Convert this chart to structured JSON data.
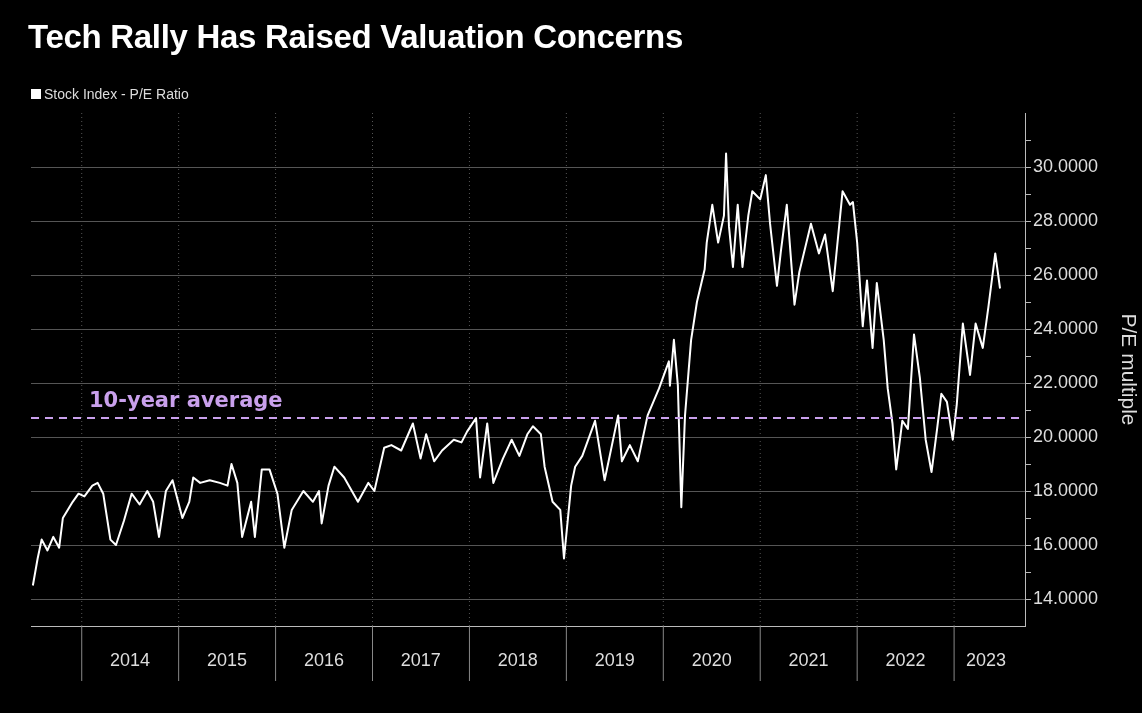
{
  "chart_data": {
    "type": "line",
    "title": "Tech Rally Has Raised Valuation Concerns",
    "ylabel": "P/E multiple",
    "legend": "top left",
    "grid": true,
    "xlim": [
      "2013-06-24",
      "2023-09-25"
    ],
    "xticks": [
      {
        "value": "2014-01-01",
        "label": null
      },
      {
        "value": "2014-07-02",
        "label": "2014"
      },
      {
        "value": "2015-01-01",
        "label": null
      },
      {
        "value": "2015-07-02",
        "label": "2015"
      },
      {
        "value": "2016-01-01",
        "label": null
      },
      {
        "value": "2016-07-02",
        "label": "2016"
      },
      {
        "value": "2017-01-01",
        "label": null
      },
      {
        "value": "2017-07-02",
        "label": "2017"
      },
      {
        "value": "2018-01-01",
        "label": null
      },
      {
        "value": "2018-07-02",
        "label": "2018"
      },
      {
        "value": "2019-01-01",
        "label": null
      },
      {
        "value": "2019-07-02",
        "label": "2019"
      },
      {
        "value": "2020-01-01",
        "label": null
      },
      {
        "value": "2020-07-02",
        "label": "2020"
      },
      {
        "value": "2021-01-01",
        "label": null
      },
      {
        "value": "2021-07-02",
        "label": "2021"
      },
      {
        "value": "2022-01-01",
        "label": null
      },
      {
        "value": "2022-07-02",
        "label": "2022"
      },
      {
        "value": "2023-01-01",
        "label": null
      },
      {
        "value": "2023-05-01",
        "label": "2023"
      }
    ],
    "ylim": [
      13,
      32
    ],
    "yticks": [
      {
        "value": 14,
        "label": "14.0000"
      },
      {
        "value": 15,
        "label": null
      },
      {
        "value": 16,
        "label": "16.0000"
      },
      {
        "value": 17,
        "label": null
      },
      {
        "value": 18,
        "label": "18.0000"
      },
      {
        "value": 19,
        "label": null
      },
      {
        "value": 20,
        "label": "20.0000"
      },
      {
        "value": 21,
        "label": null
      },
      {
        "value": 22,
        "label": "22.0000"
      },
      {
        "value": 23,
        "label": null
      },
      {
        "value": 24,
        "label": "24.0000"
      },
      {
        "value": 25,
        "label": null
      },
      {
        "value": 26,
        "label": "26.0000"
      },
      {
        "value": 27,
        "label": null
      },
      {
        "value": 28,
        "label": "28.0000"
      },
      {
        "value": 29,
        "label": null
      },
      {
        "value": 30,
        "label": "30.0000"
      },
      {
        "value": 31,
        "label": null
      }
    ],
    "ref_lines": [
      {
        "axis": "y",
        "value": 20.7,
        "label": "10-year average",
        "color": "#c9a0ec",
        "line_style": "dashed"
      }
    ],
    "series": [
      {
        "name": "Stock Index - P/E Ratio",
        "color": "#ffffff",
        "x": [
          "2013-07-01",
          "2013-07-19",
          "2013-08-03",
          "2013-08-25",
          "2013-09-16",
          "2013-10-08",
          "2013-10-22",
          "2013-11-28",
          "2013-12-20",
          "2014-01-11",
          "2014-02-10",
          "2014-03-02",
          "2014-03-23",
          "2014-04-19",
          "2014-05-10",
          "2014-06-09",
          "2014-07-08",
          "2014-08-07",
          "2014-09-05",
          "2014-09-27",
          "2014-10-19",
          "2014-11-14",
          "2014-12-09",
          "2015-01-15",
          "2015-02-10",
          "2015-02-25",
          "2015-03-23",
          "2015-04-28",
          "2015-06-05",
          "2015-07-04",
          "2015-07-19",
          "2015-08-10",
          "2015-08-28",
          "2015-10-01",
          "2015-10-15",
          "2015-11-10",
          "2015-12-09",
          "2016-01-08",
          "2016-02-03",
          "2016-03-02",
          "2016-04-15",
          "2016-05-21",
          "2016-06-13",
          "2016-06-23",
          "2016-07-19",
          "2016-08-10",
          "2016-09-16",
          "2016-11-07",
          "2016-12-16",
          "2017-01-08",
          "2017-02-14",
          "2017-03-13",
          "2017-04-19",
          "2017-06-02",
          "2017-07-01",
          "2017-07-22",
          "2017-08-21",
          "2017-09-20",
          "2017-11-03",
          "2017-12-02",
          "2017-12-23",
          "2018-01-26",
          "2018-02-10",
          "2018-03-09",
          "2018-04-01",
          "2018-05-07",
          "2018-06-09",
          "2018-07-08",
          "2018-08-07",
          "2018-08-28",
          "2018-09-27",
          "2018-10-11",
          "2018-11-10",
          "2018-12-09",
          "2018-12-23",
          "2019-01-19",
          "2019-02-03",
          "2019-03-02",
          "2019-04-19",
          "2019-05-25",
          "2019-07-15",
          "2019-07-29",
          "2019-08-28",
          "2019-09-27",
          "2019-11-03",
          "2019-12-16",
          "2020-01-22",
          "2020-01-26",
          "2020-02-10",
          "2020-02-25",
          "2020-03-09",
          "2020-03-23",
          "2020-04-15",
          "2020-05-07",
          "2020-06-05",
          "2020-06-13",
          "2020-07-04",
          "2020-07-26",
          "2020-08-17",
          "2020-08-25",
          "2020-09-05",
          "2020-09-20",
          "2020-10-08",
          "2020-10-26",
          "2020-11-17",
          "2020-12-02",
          "2021-01-01",
          "2021-01-22",
          "2021-02-07",
          "2021-03-05",
          "2021-03-20",
          "2021-04-11",
          "2021-05-10",
          "2021-05-28",
          "2021-07-11",
          "2021-08-10",
          "2021-09-02",
          "2021-10-01",
          "2021-11-07",
          "2021-12-05",
          "2021-12-16",
          "2022-01-01",
          "2022-01-22",
          "2022-02-07",
          "2022-02-28",
          "2022-03-16",
          "2022-04-11",
          "2022-04-26",
          "2022-05-14",
          "2022-05-28",
          "2022-06-20",
          "2022-07-11",
          "2022-08-03",
          "2022-08-25",
          "2022-09-16",
          "2022-10-08",
          "2022-10-29",
          "2022-11-14",
          "2022-12-05",
          "2022-12-27",
          "2023-01-11",
          "2023-02-03",
          "2023-03-02",
          "2023-03-23",
          "2023-04-19",
          "2023-05-10",
          "2023-06-05",
          "2023-06-23"
        ],
        "values": [
          14.5,
          15.5,
          16.2,
          15.8,
          16.3,
          15.9,
          17.0,
          17.6,
          17.9,
          17.8,
          18.2,
          18.3,
          17.9,
          16.2,
          16.0,
          16.9,
          17.9,
          17.5,
          18.0,
          17.6,
          16.3,
          18.0,
          18.4,
          17.0,
          17.6,
          18.5,
          18.3,
          18.4,
          18.3,
          18.2,
          19.0,
          18.3,
          16.3,
          17.6,
          16.3,
          18.8,
          18.8,
          17.9,
          15.9,
          17.3,
          18.0,
          17.6,
          18.0,
          16.8,
          18.2,
          18.9,
          18.5,
          17.6,
          18.3,
          18.0,
          19.6,
          19.7,
          19.5,
          20.5,
          19.2,
          20.1,
          19.1,
          19.5,
          19.9,
          19.8,
          20.2,
          20.7,
          18.5,
          20.5,
          18.3,
          19.2,
          19.9,
          19.3,
          20.1,
          20.4,
          20.1,
          18.9,
          17.6,
          17.3,
          15.5,
          18.2,
          18.9,
          19.3,
          20.6,
          18.4,
          20.8,
          19.1,
          19.7,
          19.1,
          20.8,
          21.8,
          22.8,
          21.9,
          23.6,
          21.9,
          17.4,
          20.8,
          23.6,
          25.0,
          26.2,
          27.2,
          28.6,
          27.2,
          28.2,
          30.5,
          27.8,
          26.3,
          28.6,
          26.3,
          28.2,
          29.1,
          28.8,
          29.7,
          27.9,
          25.6,
          26.9,
          28.6,
          24.9,
          26.1,
          27.9,
          26.8,
          27.5,
          25.4,
          29.1,
          28.6,
          28.7,
          27.2,
          24.1,
          25.8,
          23.3,
          25.7,
          23.6,
          21.8,
          20.5,
          18.8,
          20.6,
          20.3,
          23.8,
          22.2,
          19.9,
          18.7,
          20.3,
          21.6,
          21.3,
          19.9,
          21.2,
          24.2,
          22.3,
          24.2,
          23.3,
          24.8,
          26.8,
          25.5
        ]
      }
    ]
  }
}
